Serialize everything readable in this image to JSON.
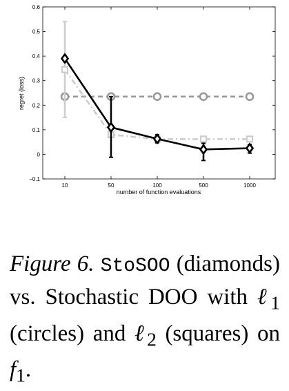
{
  "chart_data": {
    "type": "line",
    "categories": [
      "10",
      "50",
      "100",
      "500",
      "1000"
    ],
    "xlabel": "number of function evaluations",
    "ylabel": "regret (loss)",
    "ylim": [
      -0.1,
      0.6
    ],
    "yticks": [
      -0.1,
      0,
      0.1,
      0.2,
      0.3,
      0.4,
      0.5,
      0.6
    ],
    "ytick_labels": [
      "−0.1",
      "0",
      "0.1",
      "0.2",
      "0.3",
      "0.4",
      "0.5",
      "0.6"
    ],
    "grid": false,
    "series": [
      {
        "key": "l1",
        "marker": "circle",
        "color": "#999999",
        "linestyle": "dashed",
        "values": [
          0.235,
          0.235,
          0.235,
          0.235,
          0.235
        ]
      },
      {
        "key": "l2",
        "marker": "square",
        "color": "#cccccc",
        "linestyle": "dashdot",
        "values": [
          0.345,
          0.08,
          0.062,
          0.062,
          0.062
        ],
        "error_low": [
          0.15,
          0.075,
          0.058,
          0.058,
          0.058
        ],
        "error_high": [
          0.54,
          0.085,
          0.066,
          0.066,
          0.066
        ]
      },
      {
        "key": "stosoo",
        "marker": "diamond",
        "color": "#000000",
        "linestyle": "solid",
        "values": [
          0.39,
          0.11,
          0.063,
          0.02,
          0.025
        ],
        "error_low": [
          0.38,
          -0.012,
          0.047,
          -0.025,
          0.005
        ],
        "error_high": [
          0.4,
          0.235,
          0.08,
          0.045,
          0.04
        ]
      }
    ]
  },
  "caption": {
    "label": "Figure 6.",
    "method": "StoSOO",
    "part1": "(diamonds) vs. Stochastic DOO with",
    "l1_symbol": "ℓ",
    "l1_sub": "1",
    "part2": "(circles) and",
    "l2_symbol": "ℓ",
    "l2_sub": "2",
    "part3": "(squares) on",
    "f_symbol": "f",
    "f_sub": "1",
    "end": "."
  }
}
